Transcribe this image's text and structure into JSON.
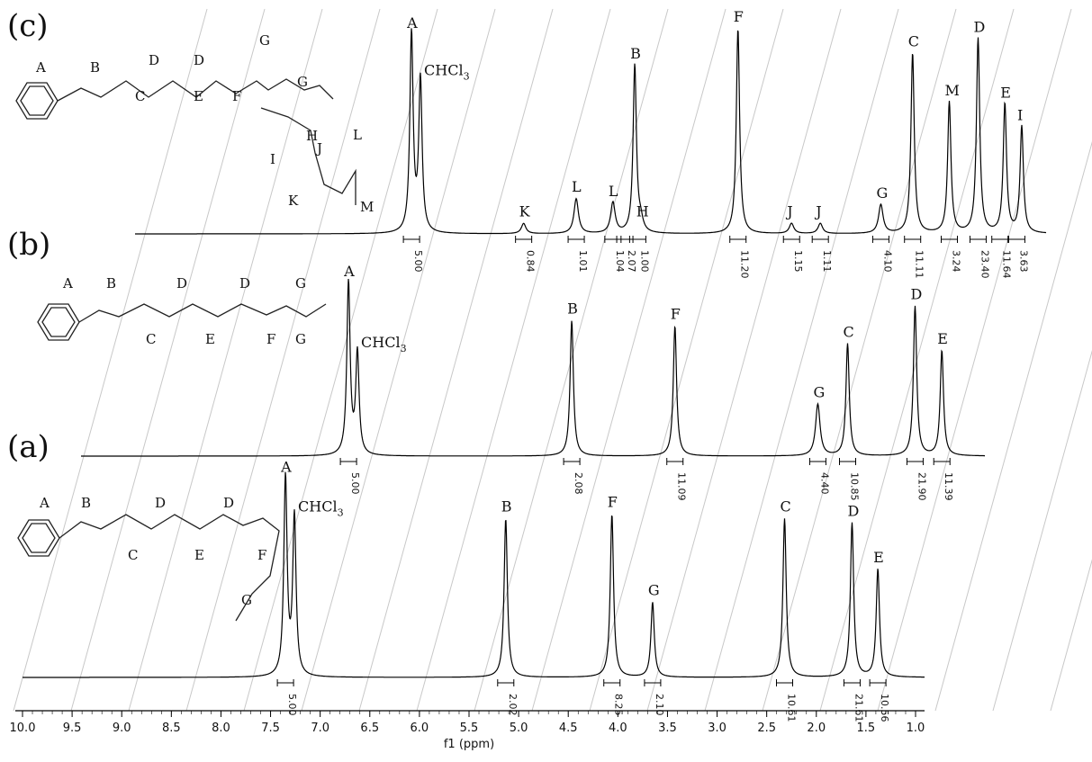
{
  "chart_data": {
    "type": "line",
    "title": "",
    "xlabel": "f1 (ppm)",
    "ylabel": "",
    "xlim": [
      10.0,
      1.0
    ],
    "x_reversed": true,
    "x_ticks": [
      "10.0",
      "9.5",
      "9.0",
      "8.5",
      "8.0",
      "7.5",
      "7.0",
      "6.5",
      "6.0",
      "5.5",
      "5.0",
      "4.5",
      "4.0",
      "3.5",
      "3.0",
      "2.5",
      "2.0",
      "1.5",
      "1.0"
    ],
    "stacked_offset_diagonal": true,
    "grid": "diagonal guide lines",
    "panels": [
      {
        "id": "c",
        "label": "(c)",
        "peaks": [
          {
            "label": "A",
            "ppm": 7.35,
            "height": 0.97
          },
          {
            "label": "CHCl3",
            "ppm": 7.26,
            "height": 0.74
          },
          {
            "label": "K",
            "ppm": 6.22,
            "height": 0.05
          },
          {
            "label": "L",
            "ppm": 5.69,
            "height": 0.17
          },
          {
            "label": "L",
            "ppm": 5.32,
            "height": 0.15
          },
          {
            "label": "B",
            "ppm": 5.1,
            "height": 0.82
          },
          {
            "label": "H",
            "ppm": 5.04,
            "height": 0.05
          },
          {
            "label": "F",
            "ppm": 4.06,
            "height": 1.0
          },
          {
            "label": "J",
            "ppm": 3.52,
            "height": 0.05
          },
          {
            "label": "J",
            "ppm": 3.23,
            "height": 0.05
          },
          {
            "label": "G",
            "ppm": 2.62,
            "height": 0.14
          },
          {
            "label": "C",
            "ppm": 2.3,
            "height": 0.88
          },
          {
            "label": "M",
            "ppm": 1.93,
            "height": 0.64
          },
          {
            "label": "D",
            "ppm": 1.64,
            "height": 0.95
          },
          {
            "label": "E",
            "ppm": 1.37,
            "height": 0.63
          },
          {
            "label": "I",
            "ppm": 1.2,
            "height": 0.52
          }
        ],
        "integrals": [
          {
            "ppm": 7.35,
            "value": "5.00"
          },
          {
            "ppm": 6.22,
            "value": "0.84"
          },
          {
            "ppm": 5.69,
            "value": "1.01"
          },
          {
            "ppm": 5.32,
            "value": "1.04"
          },
          {
            "ppm": 5.2,
            "value": "2.07"
          },
          {
            "ppm": 5.07,
            "value": "1.00"
          },
          {
            "ppm": 4.06,
            "value": "11.20"
          },
          {
            "ppm": 3.52,
            "value": "1.15"
          },
          {
            "ppm": 3.23,
            "value": "1.11"
          },
          {
            "ppm": 2.62,
            "value": "4.10"
          },
          {
            "ppm": 2.3,
            "value": "11.11"
          },
          {
            "ppm": 1.93,
            "value": "3.24"
          },
          {
            "ppm": 1.64,
            "value": "23.40"
          },
          {
            "ppm": 1.42,
            "value": "11.64"
          },
          {
            "ppm": 1.25,
            "value": "3.63"
          }
        ],
        "structure_labels": [
          "A",
          "B",
          "C",
          "D",
          "E",
          "D",
          "F",
          "G",
          "G",
          "H",
          "I",
          "J",
          "K",
          "L",
          "M"
        ]
      },
      {
        "id": "b",
        "label": "(b)",
        "peaks": [
          {
            "label": "A",
            "ppm": 7.35,
            "height": 0.97
          },
          {
            "label": "CHCl3",
            "ppm": 7.26,
            "height": 0.57
          },
          {
            "label": "B",
            "ppm": 5.1,
            "height": 0.76
          },
          {
            "label": "F",
            "ppm": 4.06,
            "height": 0.73
          },
          {
            "label": "G",
            "ppm": 2.62,
            "height": 0.29
          },
          {
            "label": "C",
            "ppm": 2.32,
            "height": 0.63
          },
          {
            "label": "D",
            "ppm": 1.64,
            "height": 0.84
          },
          {
            "label": "E",
            "ppm": 1.37,
            "height": 0.59
          }
        ],
        "integrals": [
          {
            "ppm": 7.35,
            "value": "5.00"
          },
          {
            "ppm": 5.1,
            "value": "2.08"
          },
          {
            "ppm": 4.06,
            "value": "11.09"
          },
          {
            "ppm": 2.62,
            "value": "4.40"
          },
          {
            "ppm": 2.32,
            "value": "10.85"
          },
          {
            "ppm": 1.64,
            "value": "21.90"
          },
          {
            "ppm": 1.37,
            "value": "11.39"
          }
        ],
        "structure_labels": [
          "A",
          "B",
          "C",
          "D",
          "E",
          "D",
          "F",
          "G",
          "G"
        ]
      },
      {
        "id": "a",
        "label": "(a)",
        "peaks": [
          {
            "label": "A",
            "ppm": 7.35,
            "height": 0.9
          },
          {
            "label": "CHCl3",
            "ppm": 7.26,
            "height": 0.72
          },
          {
            "label": "B",
            "ppm": 5.13,
            "height": 0.72
          },
          {
            "label": "F",
            "ppm": 4.06,
            "height": 0.74
          },
          {
            "label": "G",
            "ppm": 3.65,
            "height": 0.34
          },
          {
            "label": "C",
            "ppm": 2.32,
            "height": 0.72
          },
          {
            "label": "D",
            "ppm": 1.64,
            "height": 0.7
          },
          {
            "label": "E",
            "ppm": 1.38,
            "height": 0.49
          }
        ],
        "integrals": [
          {
            "ppm": 7.35,
            "value": "5.00"
          },
          {
            "ppm": 5.13,
            "value": "2.02"
          },
          {
            "ppm": 4.06,
            "value": "8.25"
          },
          {
            "ppm": 3.65,
            "value": "2.10"
          },
          {
            "ppm": 2.32,
            "value": "10.61"
          },
          {
            "ppm": 1.64,
            "value": "21.61"
          },
          {
            "ppm": 1.38,
            "value": "10.56"
          }
        ],
        "structure_labels": [
          "A",
          "B",
          "C",
          "D",
          "E",
          "D",
          "F",
          "G"
        ]
      }
    ]
  }
}
